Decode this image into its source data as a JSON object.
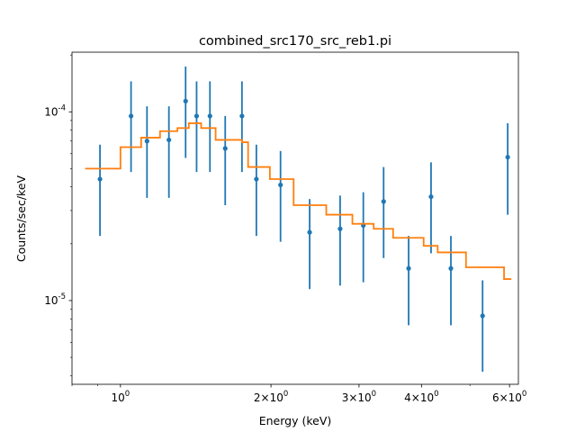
{
  "chart_data": {
    "type": "scatter",
    "title": "combined_src170_src_reb1.pi",
    "xlabel": "Energy (keV)",
    "ylabel": "Counts/sec/keV",
    "xscale": "log",
    "yscale": "log",
    "xlim": [
      0.8,
      6.25
    ],
    "ylim": [
      3.6e-06,
      0.000207
    ],
    "grid": false,
    "x_ticks": [
      {
        "value": 1,
        "label": "10^0"
      },
      {
        "value": 2,
        "label": "2×10^0"
      },
      {
        "value": 3,
        "label": "3×10^0"
      },
      {
        "value": 4,
        "label": "4×10^0"
      },
      {
        "value": 6,
        "label": "6×10^0"
      }
    ],
    "y_ticks": [
      {
        "value": 1e-05,
        "label": "10^-5"
      },
      {
        "value": 0.0001,
        "label": "10^-4"
      }
    ],
    "colors": {
      "data": "#1f77b4",
      "model": "#ff7f0e"
    },
    "data_series": {
      "points": [
        {
          "x": 0.91,
          "y": 4.4e-05,
          "ylo": 2.2e-05,
          "yhi": 6.7e-05
        },
        {
          "x": 1.05,
          "y": 9.5e-05,
          "ylo": 4.8e-05,
          "yhi": 0.000145
        },
        {
          "x": 1.13,
          "y": 7e-05,
          "ylo": 3.5e-05,
          "yhi": 0.000107
        },
        {
          "x": 1.25,
          "y": 7.1e-05,
          "ylo": 3.5e-05,
          "yhi": 0.000107
        },
        {
          "x": 1.35,
          "y": 0.000114,
          "ylo": 5.7e-05,
          "yhi": 0.000174
        },
        {
          "x": 1.42,
          "y": 9.5e-05,
          "ylo": 4.8e-05,
          "yhi": 0.000145
        },
        {
          "x": 1.51,
          "y": 9.5e-05,
          "ylo": 4.8e-05,
          "yhi": 0.000145
        },
        {
          "x": 1.62,
          "y": 6.4e-05,
          "ylo": 3.2e-05,
          "yhi": 9.5e-05
        },
        {
          "x": 1.75,
          "y": 9.5e-05,
          "ylo": 4.8e-05,
          "yhi": 0.000145
        },
        {
          "x": 1.87,
          "y": 4.4e-05,
          "ylo": 2.2e-05,
          "yhi": 6.7e-05
        },
        {
          "x": 2.09,
          "y": 4.1e-05,
          "ylo": 2.05e-05,
          "yhi": 6.2e-05
        },
        {
          "x": 2.39,
          "y": 2.3e-05,
          "ylo": 1.15e-05,
          "yhi": 3.45e-05
        },
        {
          "x": 2.75,
          "y": 2.4e-05,
          "ylo": 1.2e-05,
          "yhi": 3.6e-05
        },
        {
          "x": 3.06,
          "y": 2.5e-05,
          "ylo": 1.25e-05,
          "yhi": 3.75e-05
        },
        {
          "x": 3.36,
          "y": 3.35e-05,
          "ylo": 1.68e-05,
          "yhi": 5.1e-05
        },
        {
          "x": 3.77,
          "y": 1.48e-05,
          "ylo": 7.4e-06,
          "yhi": 2.2e-05
        },
        {
          "x": 4.18,
          "y": 3.55e-05,
          "ylo": 1.78e-05,
          "yhi": 5.4e-05
        },
        {
          "x": 4.58,
          "y": 1.48e-05,
          "ylo": 7.4e-06,
          "yhi": 2.2e-05
        },
        {
          "x": 5.3,
          "y": 8.3e-06,
          "ylo": 4.2e-06,
          "yhi": 1.28e-05
        },
        {
          "x": 5.95,
          "y": 5.75e-05,
          "ylo": 2.85e-05,
          "yhi": 8.7e-05
        }
      ]
    },
    "model_series": {
      "steps": [
        {
          "x0": 0.85,
          "x1": 1.0,
          "y": 5e-05
        },
        {
          "x0": 1.0,
          "x1": 1.1,
          "y": 6.5e-05
        },
        {
          "x0": 1.1,
          "x1": 1.2,
          "y": 7.3e-05
        },
        {
          "x0": 1.2,
          "x1": 1.3,
          "y": 7.9e-05
        },
        {
          "x0": 1.3,
          "x1": 1.37,
          "y": 8.2e-05
        },
        {
          "x0": 1.37,
          "x1": 1.45,
          "y": 8.7e-05
        },
        {
          "x0": 1.45,
          "x1": 1.55,
          "y": 8.2e-05
        },
        {
          "x0": 1.55,
          "x1": 1.75,
          "y": 7.1e-05
        },
        {
          "x0": 1.75,
          "x1": 1.8,
          "y": 6.9e-05
        },
        {
          "x0": 1.8,
          "x1": 1.99,
          "y": 5.1e-05
        },
        {
          "x0": 1.99,
          "x1": 2.22,
          "y": 4.4e-05
        },
        {
          "x0": 2.22,
          "x1": 2.58,
          "y": 3.2e-05
        },
        {
          "x0": 2.58,
          "x1": 2.91,
          "y": 2.85e-05
        },
        {
          "x0": 2.91,
          "x1": 3.21,
          "y": 2.55e-05
        },
        {
          "x0": 3.21,
          "x1": 3.51,
          "y": 2.4e-05
        },
        {
          "x0": 3.51,
          "x1": 4.04,
          "y": 2.15e-05
        },
        {
          "x0": 4.04,
          "x1": 4.31,
          "y": 1.95e-05
        },
        {
          "x0": 4.31,
          "x1": 4.91,
          "y": 1.8e-05
        },
        {
          "x0": 4.91,
          "x1": 5.85,
          "y": 1.5e-05
        },
        {
          "x0": 5.85,
          "x1": 6.05,
          "y": 1.3e-05
        }
      ]
    }
  }
}
